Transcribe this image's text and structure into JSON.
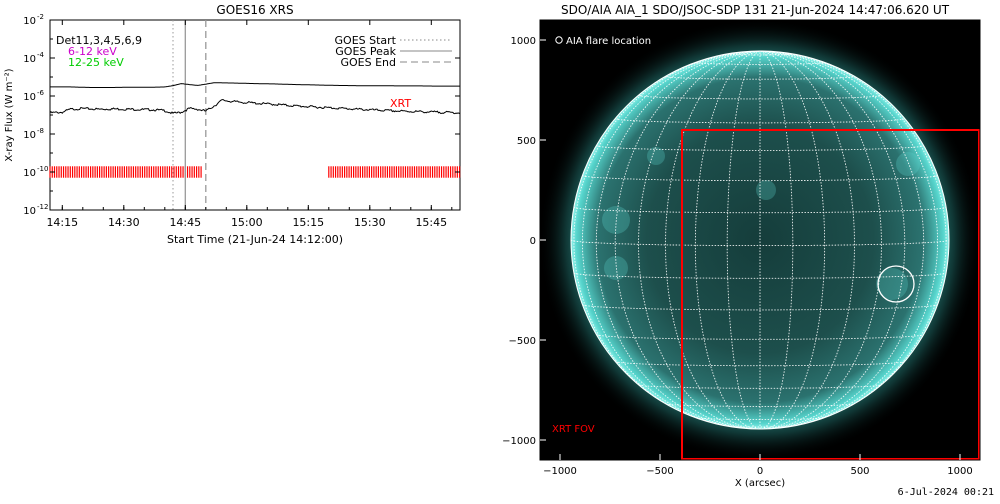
{
  "footer_date": "6-Jul-2024 00:21",
  "chart_data": [
    {
      "type": "line",
      "title": "GOES16 XRS",
      "xlabel": "Start Time (21-Jun-24 14:12:00)",
      "ylabel": "X-ray Flux (W m⁻²)",
      "y_scale": "log",
      "ylim": [
        1e-12,
        0.01
      ],
      "x_unit": "minutes after 14:12:00",
      "xlim": [
        0,
        100
      ],
      "grid": false,
      "xticks": [
        {
          "label": "14:15",
          "value": 3
        },
        {
          "label": "14:30",
          "value": 18
        },
        {
          "label": "14:45",
          "value": 33
        },
        {
          "label": "15:00",
          "value": 48
        },
        {
          "label": "15:15",
          "value": 63
        },
        {
          "label": "15:30",
          "value": 78
        },
        {
          "label": "15:45",
          "value": 93
        }
      ],
      "yticks": [
        {
          "base": "10",
          "exp": "-2",
          "value": 0.01
        },
        {
          "base": "10",
          "exp": "-4",
          "value": 0.0001
        },
        {
          "base": "10",
          "exp": "-6",
          "value": 1e-06
        },
        {
          "base": "10",
          "exp": "-8",
          "value": 1e-08
        },
        {
          "base": "10",
          "exp": "-10",
          "value": 1e-10
        },
        {
          "base": "10",
          "exp": "-12",
          "value": 1e-12
        }
      ],
      "labels": {
        "detectors": "Det11,3,4,5,6,9",
        "band_low": "6-12 keV",
        "band_high": "12-25 keV",
        "xrt": "XRT"
      },
      "legend": {
        "placement": "top-right",
        "items": [
          {
            "label": "GOES Start",
            "style": "dotted"
          },
          {
            "label": "GOES Peak",
            "style": "solid"
          },
          {
            "label": "GOES End",
            "style": "dashed"
          }
        ]
      },
      "events": {
        "start": 30,
        "peak": 33,
        "end": 38
      },
      "xrt_intervals": [
        [
          0,
          37
        ],
        [
          68,
          100
        ]
      ],
      "series": [
        {
          "color": "#000000",
          "x": [
            0,
            5,
            10,
            15,
            20,
            25,
            28,
            30,
            32,
            34,
            36,
            38,
            40,
            45,
            50,
            55,
            60,
            65,
            70,
            75,
            80,
            85,
            90,
            95,
            100
          ],
          "y": [
            3e-06,
            3e-06,
            2.8e-06,
            2.8e-06,
            2.9e-06,
            2.9e-06,
            3e-06,
            3.5e-06,
            4.5e-06,
            4e-06,
            3.6e-06,
            4.2e-06,
            5e-06,
            4.8e-06,
            4.5e-06,
            4.3e-06,
            4e-06,
            3.8e-06,
            3.6e-06,
            3.5e-06,
            3.5e-06,
            3.4e-06,
            3.4e-06,
            3.3e-06,
            3.3e-06
          ]
        },
        {
          "color": "#000000",
          "x": [
            0,
            3,
            5,
            8,
            12,
            15,
            20,
            25,
            28,
            30,
            32,
            34,
            36,
            38,
            40,
            42,
            45,
            50,
            55,
            60,
            65,
            70,
            75,
            80,
            85,
            90,
            95,
            100
          ],
          "y": [
            1.3e-07,
            1.4e-07,
            2e-07,
            2.2e-07,
            2e-07,
            2.1e-07,
            2e-07,
            1.9e-07,
            1.7e-07,
            1.2e-07,
            1.4e-07,
            2.2e-07,
            2e-07,
            1.6e-07,
            3e-07,
            6e-07,
            5e-07,
            4.2e-07,
            3.6e-07,
            3e-07,
            2.6e-07,
            2.3e-07,
            2e-07,
            1.8e-07,
            1.6e-07,
            1.5e-07,
            1.4e-07,
            1.3e-07
          ]
        }
      ]
    },
    {
      "type": "image",
      "title": "SDO/AIA AIA_1 SDO/JSOC-SDP 131 21-Jun-2024 14:47:06.620 UT",
      "xlabel": "X (arcsec)",
      "ylabel": "",
      "xlim": [
        -1100,
        1100
      ],
      "ylim": [
        -1100,
        1100
      ],
      "xticks": [
        -1000,
        -500,
        0,
        500,
        1000
      ],
      "yticks": [
        -1000,
        -500,
        0,
        500,
        1000
      ],
      "solar_radius_arcsec": 945,
      "grid_spacing_deg": 10,
      "flare_location": {
        "x": 680,
        "y": -220,
        "radius": 90,
        "label": "AIA flare location"
      },
      "xrt_fov": {
        "x": [
          -390,
          1100
        ],
        "y": [
          -1100,
          550
        ],
        "label": "XRT FOV"
      },
      "colors": {
        "disk": "#2a6e6c",
        "glow": "#48cfc7",
        "grid": "#ffffff",
        "fov": "#ff0000"
      }
    }
  ]
}
